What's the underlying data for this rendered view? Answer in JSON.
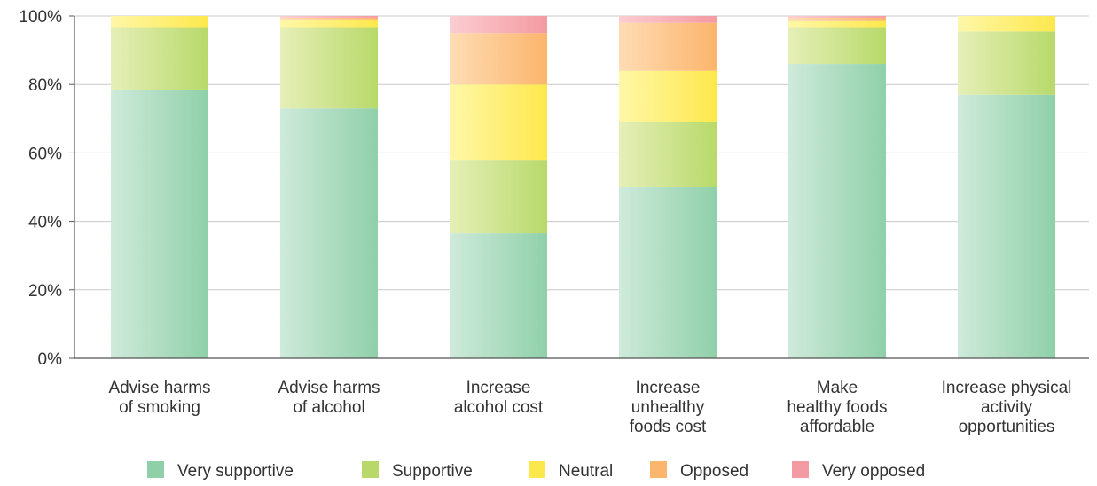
{
  "chart_data": {
    "type": "bar",
    "stacked": true,
    "title": "",
    "xlabel": "",
    "ylabel": "",
    "ylim": [
      0,
      100
    ],
    "yticks": [
      "0%",
      "20%",
      "40%",
      "60%",
      "80%",
      "100%"
    ],
    "grid": true,
    "legend_position": "bottom",
    "categories": [
      [
        "Advise harms",
        "of smoking"
      ],
      [
        "Advise harms",
        "of alcohol"
      ],
      [
        "Increase",
        "alcohol cost"
      ],
      [
        "Increase",
        "unhealthy",
        "foods cost"
      ],
      [
        "Make",
        "healthy foods",
        "affordable"
      ],
      [
        "Increase physical",
        "activity",
        "opportunities"
      ]
    ],
    "series": [
      {
        "name": "Very supportive",
        "color": "#8fd0a9",
        "light": "#cfeadb",
        "values": [
          78.5,
          73,
          36.5,
          50,
          86,
          77
        ]
      },
      {
        "name": "Supportive",
        "color": "#b8d96a",
        "light": "#e6efb8",
        "values": [
          18,
          23.5,
          21.5,
          19,
          10.5,
          18.5
        ]
      },
      {
        "name": "Neutral",
        "color": "#fde84c",
        "light": "#fff7a8",
        "values": [
          3.5,
          2.5,
          22,
          15,
          2,
          4.5
        ]
      },
      {
        "name": "Opposed",
        "color": "#fbb56c",
        "light": "#fedcb4",
        "values": [
          0,
          0.5,
          15,
          14,
          1,
          0
        ]
      },
      {
        "name": "Very opposed",
        "color": "#f49aa2",
        "light": "#fbcdd1",
        "values": [
          0,
          0.5,
          5,
          2,
          0.5,
          0
        ]
      }
    ]
  }
}
